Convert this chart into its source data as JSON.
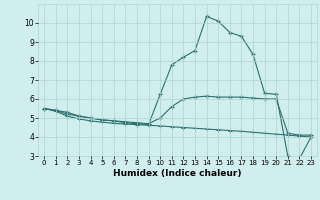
{
  "xlabel": "Humidex (Indice chaleur)",
  "xlim": [
    -0.5,
    23.5
  ],
  "ylim": [
    3,
    11
  ],
  "yticks": [
    3,
    4,
    5,
    6,
    7,
    8,
    9,
    10
  ],
  "xticks": [
    0,
    1,
    2,
    3,
    4,
    5,
    6,
    7,
    8,
    9,
    10,
    11,
    12,
    13,
    14,
    15,
    16,
    17,
    18,
    19,
    20,
    21,
    22,
    23
  ],
  "bg_color": "#d1eeee",
  "line_color": "#2a7070",
  "grid_color": "#b0d0d0",
  "line1_y": [
    5.5,
    5.4,
    5.3,
    5.1,
    5.0,
    4.9,
    4.85,
    4.75,
    4.7,
    4.65,
    6.25,
    7.8,
    8.2,
    8.55,
    10.35,
    10.1,
    9.5,
    9.3,
    8.35,
    6.3,
    6.25,
    3.0,
    2.85,
    4.0
  ],
  "line2_y": [
    5.5,
    5.4,
    5.2,
    5.1,
    5.0,
    4.9,
    4.85,
    4.8,
    4.75,
    4.7,
    5.0,
    5.6,
    6.0,
    6.1,
    6.15,
    6.1,
    6.1,
    6.1,
    6.05,
    6.0,
    6.0,
    4.2,
    4.1,
    4.1
  ],
  "line3_y": [
    5.5,
    5.35,
    5.1,
    4.95,
    4.85,
    4.78,
    4.72,
    4.68,
    4.65,
    4.62,
    4.58,
    4.54,
    4.5,
    4.46,
    4.42,
    4.38,
    4.34,
    4.3,
    4.25,
    4.2,
    4.15,
    4.1,
    4.05,
    4.0
  ]
}
